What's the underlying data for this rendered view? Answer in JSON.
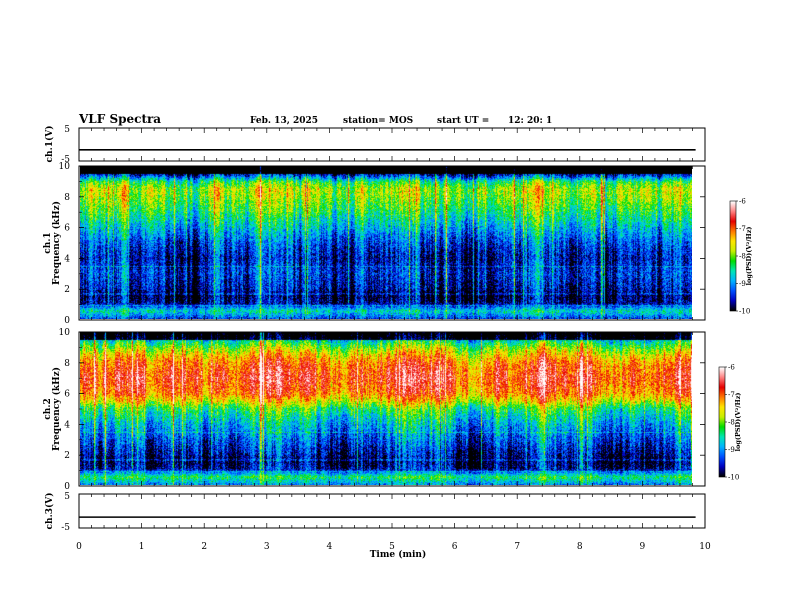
{
  "header": {
    "title": "VLF Spectra",
    "date": "Feb. 13, 2025",
    "station": "station= MOS",
    "start_ut_label": "start  UT  =",
    "start_ut_value": "12: 20: 1"
  },
  "chart_data": [
    {
      "type": "line",
      "panel": "ch.1(V)",
      "ylabel": "ch.1(V)",
      "ylim": [
        -5,
        5
      ],
      "yticks": [
        "5",
        "-5"
      ],
      "x": [
        0,
        9.85
      ],
      "values": [
        -1.6,
        -1.6
      ],
      "color": "#000000"
    },
    {
      "type": "heatmap",
      "panel": "ch.1 spectrogram",
      "ylabel": "ch.1\nFrequency (kHz)",
      "ylabel_lines": [
        "ch.1",
        "Frequency (kHz)"
      ],
      "ylim": [
        0,
        10
      ],
      "yticks": [
        "0",
        "2",
        "4",
        "6",
        "8",
        "10"
      ],
      "xlim": [
        0,
        10
      ],
      "data_extent_min": 9.85,
      "z_range": [
        -10,
        -6
      ],
      "colorbar_label": "log(PSD)(V²/Hz)",
      "colorbar_ticks": [
        "-6",
        "-7",
        "-8",
        "-9",
        "-10"
      ],
      "band_profile_freq_khz": [
        0,
        0.5,
        1,
        1.5,
        2,
        3,
        4,
        5,
        6,
        7,
        8,
        8.5,
        9,
        9.4,
        9.7,
        10
      ],
      "band_profile_log_psd": [
        -9.3,
        -8.6,
        -9.7,
        -9.9,
        -9.6,
        -9.4,
        -9.6,
        -9.3,
        -8.8,
        -8.3,
        -7.9,
        -7.8,
        -8.3,
        -9.4,
        -10,
        -10
      ]
    },
    {
      "type": "heatmap",
      "panel": "ch.2 spectrogram",
      "ylabel": "ch.2\nFrequency (kHz)",
      "ylabel_lines": [
        "ch.2",
        "Frequency (kHz)"
      ],
      "ylim": [
        0,
        10
      ],
      "yticks": [
        "0",
        "2",
        "4",
        "6",
        "8",
        "10"
      ],
      "xlim": [
        0,
        10
      ],
      "data_extent_min": 9.85,
      "z_range": [
        -10,
        -6
      ],
      "colorbar_label": "log(PSD)(V²/Hz)",
      "colorbar_ticks": [
        "-6",
        "-7",
        "-8",
        "-9",
        "-10"
      ],
      "band_profile_freq_khz": [
        0,
        0.5,
        1,
        1.5,
        2,
        3,
        4,
        5,
        5.5,
        6,
        7,
        8,
        8.5,
        9,
        9.5,
        10
      ],
      "band_profile_log_psd": [
        -9.0,
        -8.3,
        -9.6,
        -9.8,
        -9.6,
        -9.2,
        -8.8,
        -8.2,
        -7.5,
        -7.0,
        -6.7,
        -7.0,
        -7.4,
        -7.9,
        -8.6,
        -9.0
      ]
    },
    {
      "type": "line",
      "panel": "ch.3(V)",
      "ylabel": "ch.3(V)",
      "ylim": [
        -5,
        5
      ],
      "yticks": [
        "5",
        "-5"
      ],
      "x": [
        0,
        9.85
      ],
      "values": [
        -1.8,
        -1.8
      ],
      "color": "#000000"
    }
  ],
  "x_axis": {
    "label": "Time (min)",
    "lim": [
      0,
      10
    ],
    "ticks": [
      "0",
      "1",
      "2",
      "3",
      "4",
      "5",
      "6",
      "7",
      "8",
      "9",
      "10"
    ]
  },
  "colors": {
    "colormap": [
      "#000000",
      "#0000c0",
      "#0050ff",
      "#00b4ff",
      "#00e6b4",
      "#00dc00",
      "#c8f000",
      "#ffe600",
      "#ff7800",
      "#e60000",
      "#ff8282",
      "#ffffff"
    ]
  }
}
